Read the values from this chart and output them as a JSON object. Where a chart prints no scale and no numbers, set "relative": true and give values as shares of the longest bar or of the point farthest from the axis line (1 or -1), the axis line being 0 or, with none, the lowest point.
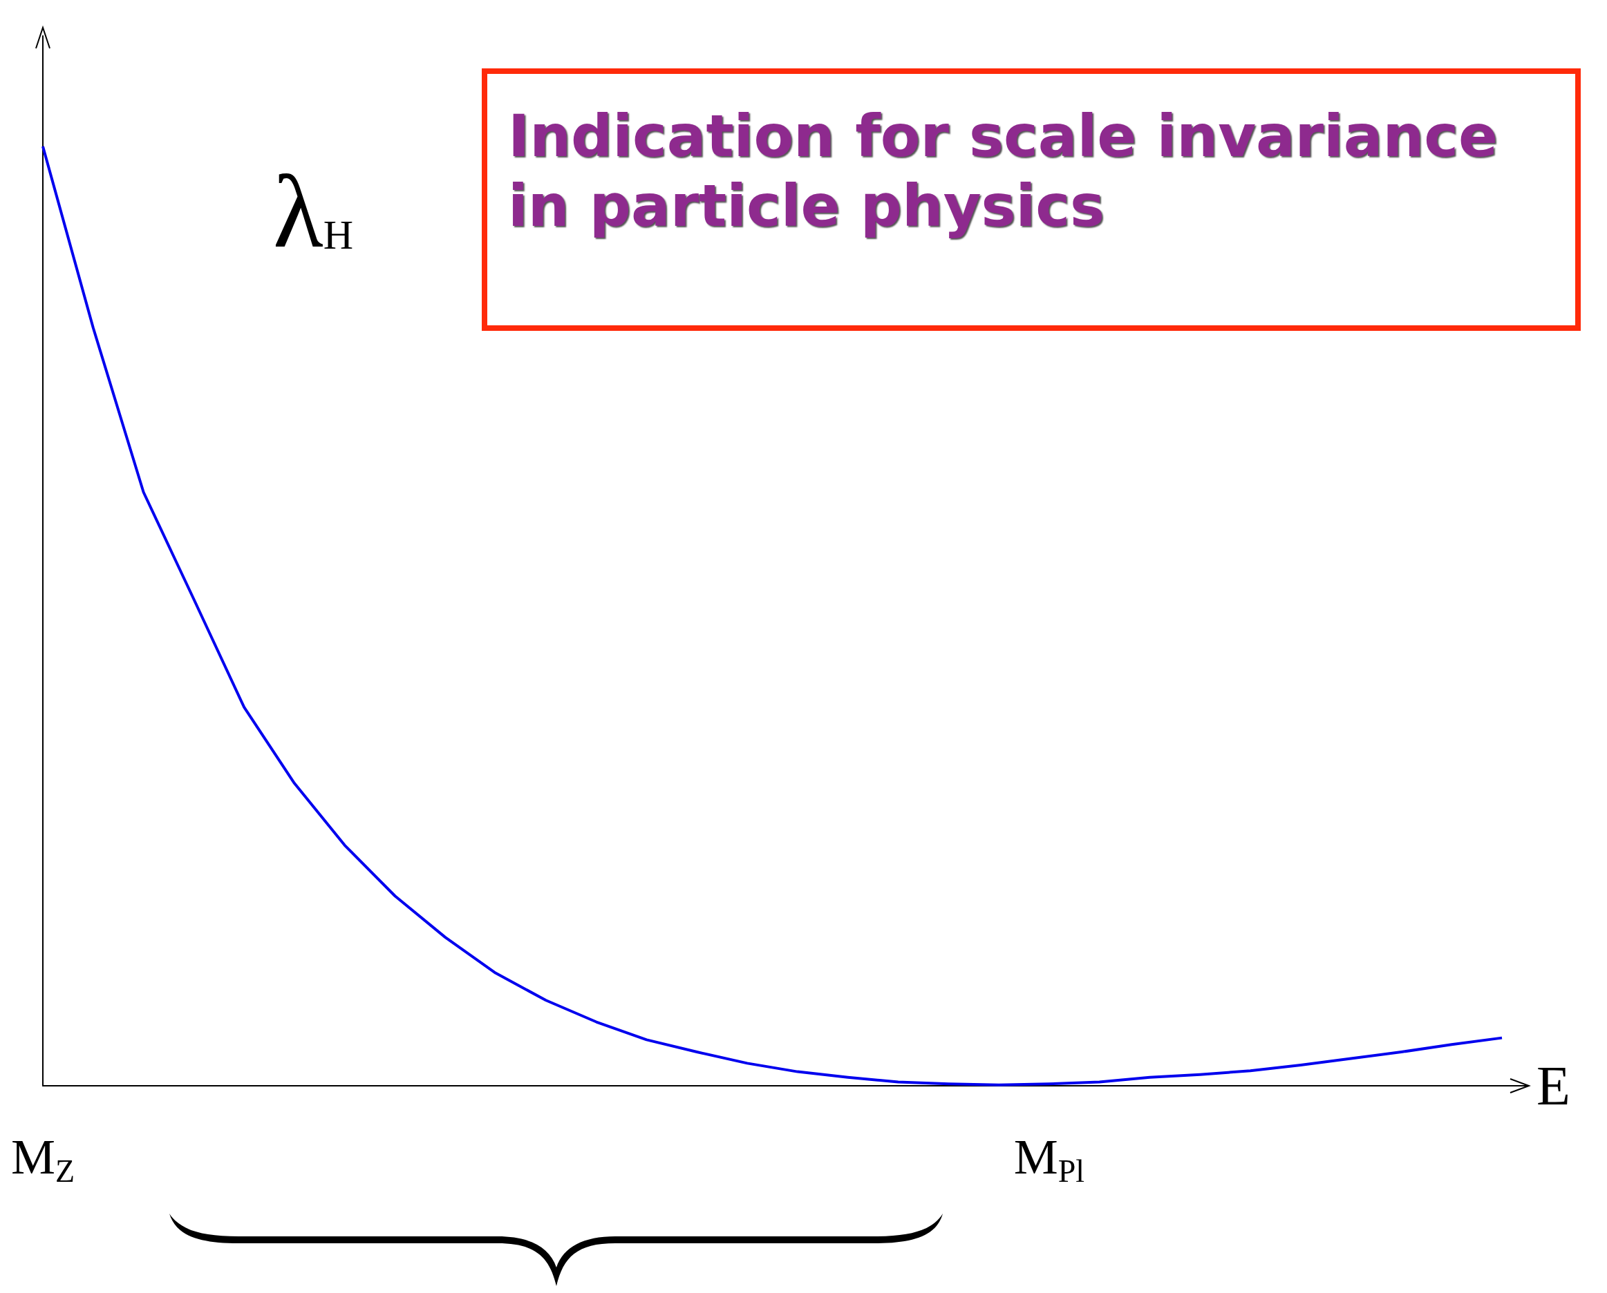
{
  "chart_data": {
    "type": "line",
    "relative": true,
    "title": "Indication for scale invariance in particle physics",
    "ylabel": "λ$_{H}$",
    "xlabel": "E",
    "categories": [
      "M$_{Z}$",
      null,
      null,
      null,
      null,
      null,
      null,
      null,
      null,
      null,
      null,
      null,
      null,
      null,
      null,
      null,
      null,
      null,
      null,
      null,
      "M$_{Pl}$",
      null,
      null,
      null,
      null,
      null,
      null,
      null,
      null,
      null
    ],
    "series": [
      {
        "color": "#0000ee",
        "values": [
          1.0,
          0.807,
          0.632,
          0.518,
          0.403,
          0.322,
          0.256,
          0.202,
          0.158,
          0.12,
          0.091,
          0.068,
          0.049,
          0.036,
          0.024,
          0.015,
          0.009,
          0.004,
          0.002,
          0.001,
          0.002,
          0.004,
          0.009,
          0.012,
          0.016,
          0.022,
          0.029,
          0.036,
          0.044,
          0.051
        ]
      }
    ],
    "grid": false
  }
}
